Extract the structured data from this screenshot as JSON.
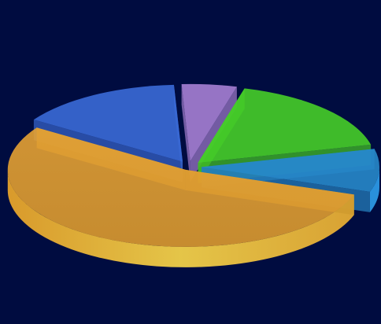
{
  "chart_data": {
    "type": "pie",
    "style": "3d-exploded",
    "title": "",
    "background": "#000c40",
    "slices": [
      {
        "value": 5,
        "color": "#b48ae6"
      },
      {
        "value": 17,
        "color": "#4ce02c"
      },
      {
        "value": 9,
        "color": "#2a94dc"
      },
      {
        "value": 54,
        "color": "#f1b536"
      },
      {
        "value": 15,
        "color": "#3f73ea"
      }
    ]
  }
}
